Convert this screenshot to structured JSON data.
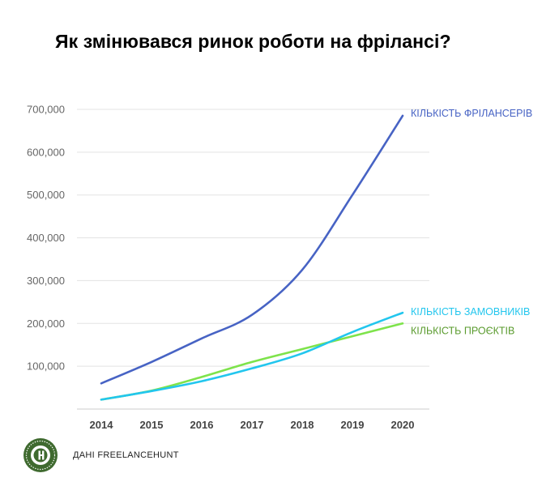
{
  "title": "Як змінювався ринок роботи на фрілансі?",
  "source": "ДАНІ FREELANCEHUNT",
  "chart_data": {
    "type": "line",
    "title": "Як змінювався ринок роботи на фрілансі?",
    "x": [
      "2014",
      "2015",
      "2016",
      "2017",
      "2018",
      "2019",
      "2020"
    ],
    "y_ticks": [
      "100,000",
      "200,000",
      "300,000",
      "400,000",
      "500,000",
      "600,000",
      "700,000"
    ],
    "ylim": [
      0,
      700000
    ],
    "grid": true,
    "series": [
      {
        "name": "КІЛЬКІСТЬ ФРІЛАНСЕРІВ",
        "color": "#4763c4",
        "values": [
          60000,
          110000,
          165000,
          220000,
          325000,
          500000,
          685000
        ]
      },
      {
        "name": "КІЛЬКІСТЬ ЗАМОВНИКІВ",
        "color": "#22c6ee",
        "values": [
          22000,
          42000,
          65000,
          95000,
          130000,
          180000,
          225000
        ]
      },
      {
        "name": "КІЛЬКІСТЬ ПРОЄКТІВ",
        "color": "#7ee34b",
        "label_color": "#5a9b2e",
        "values": [
          22000,
          43000,
          75000,
          110000,
          140000,
          170000,
          200000
        ]
      }
    ]
  }
}
